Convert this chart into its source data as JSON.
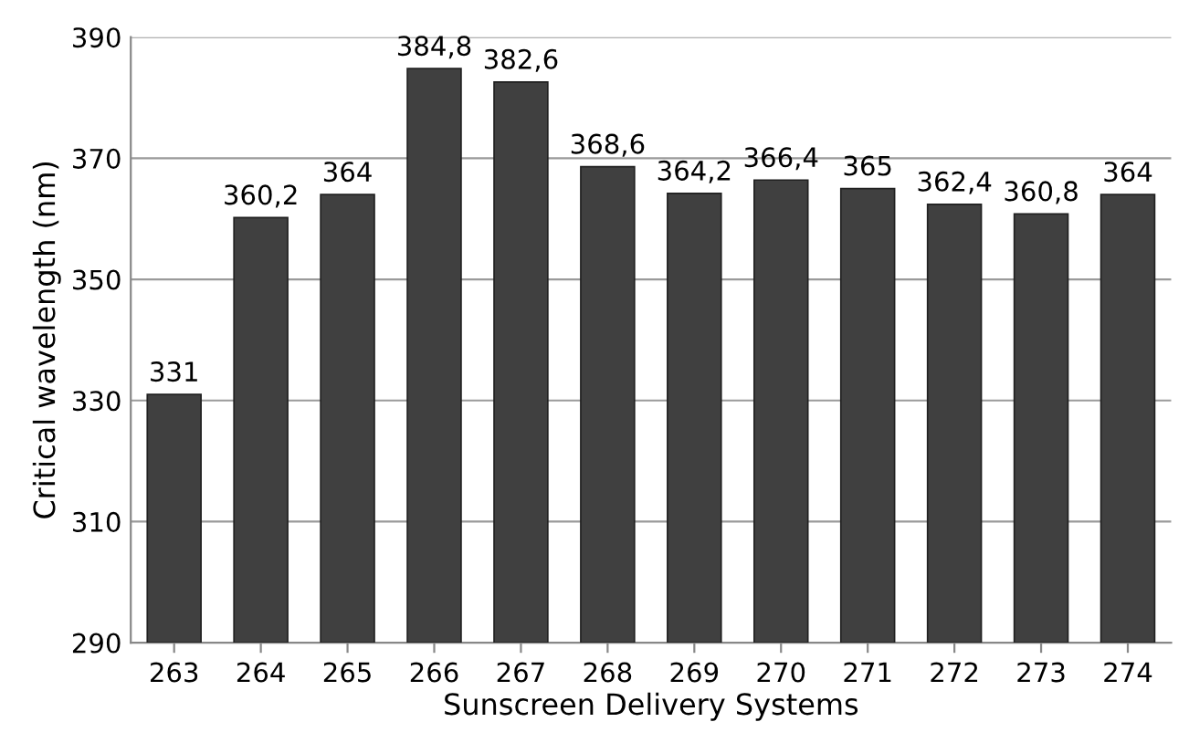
{
  "chart_data": {
    "type": "bar",
    "xlabel": "Sunscreen Delivery Systems",
    "ylabel": "Critical wavelength (nm)",
    "categories": [
      "263",
      "264",
      "265",
      "266",
      "267",
      "268",
      "269",
      "270",
      "271",
      "272",
      "273",
      "274"
    ],
    "values": [
      331,
      360.2,
      364,
      384.8,
      382.6,
      368.6,
      364.2,
      366.4,
      365,
      362.4,
      360.8,
      364
    ],
    "value_labels": [
      "331",
      "360,2",
      "364",
      "384,8",
      "382,6",
      "368,6",
      "364,2",
      "366,4",
      "365",
      "362,4",
      "360,8",
      "364"
    ],
    "color": "#404040",
    "ylim": [
      290,
      390
    ],
    "yticks": [
      290,
      310,
      330,
      350,
      370,
      390
    ],
    "grid": "y",
    "legend": false
  }
}
